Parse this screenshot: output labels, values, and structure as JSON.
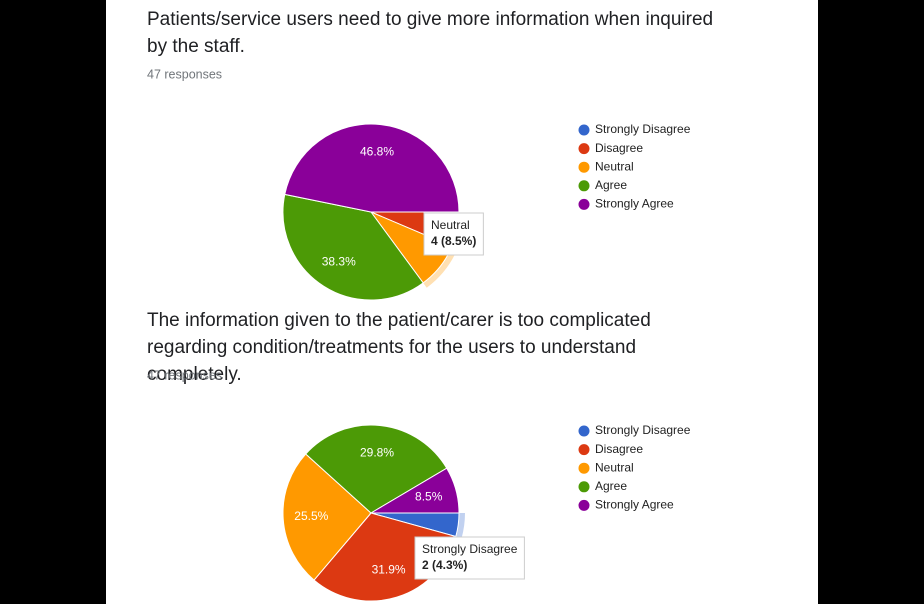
{
  "chart_data": [
    {
      "type": "pie",
      "title": "Patients/service users need to give more information when inquired by the staff.",
      "subtitle": "47 responses",
      "categories": [
        "Strongly Disagree",
        "Disagree",
        "Neutral",
        "Agree",
        "Strongly Agree"
      ],
      "values": [
        0,
        6.4,
        8.5,
        38.3,
        46.8
      ],
      "value_labels": [
        null,
        null,
        null,
        "38.3%",
        "46.8%"
      ],
      "colors": [
        "#3366cc",
        "#dc3912",
        "#ff9900",
        "#4c9a06",
        "#8a0099"
      ],
      "legend": "right",
      "tooltip": {
        "name": "Neutral",
        "label": "4 (8.5%)"
      }
    },
    {
      "type": "pie",
      "title": "The information given to the patient/carer is too complicated regarding condition/treatments for the users to understand completely.",
      "subtitle": "47 responses",
      "categories": [
        "Strongly Disagree",
        "Disagree",
        "Neutral",
        "Agree",
        "Strongly Agree"
      ],
      "values": [
        4.3,
        31.9,
        25.5,
        29.8,
        8.5
      ],
      "value_labels": [
        null,
        "31.9%",
        "25.5%",
        "29.8%",
        "8.5%"
      ],
      "colors": [
        "#3366cc",
        "#dc3912",
        "#ff9900",
        "#4c9a06",
        "#8a0099"
      ],
      "legend": "right",
      "tooltip": {
        "name": "Strongly Disagree",
        "label": "2 (4.3%)"
      }
    }
  ]
}
